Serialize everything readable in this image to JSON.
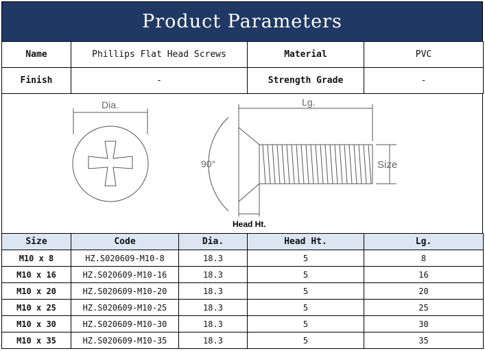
{
  "title": "Product Parameters",
  "info": {
    "name_label": "Name",
    "name_value": "Phillips Flat Head Screws",
    "material_label": "Material",
    "material_value": "PVC",
    "finish_label": "Finish",
    "finish_value": "-",
    "grade_label": "Strength Grade",
    "grade_value": "-"
  },
  "drawing": {
    "dia": "Dia.",
    "lg": "Lg.",
    "angle": "90°",
    "size": "Size",
    "head_ht": "Head Ht."
  },
  "table": {
    "headers": [
      "Size",
      "Code",
      "Dia.",
      "Head Ht.",
      "Lg."
    ],
    "rows": [
      [
        "M10 x 8",
        "HZ.S020609-M10-8",
        "18.3",
        "5",
        "8"
      ],
      [
        "M10 x 16",
        "HZ.S020609-M10-16",
        "18.3",
        "5",
        "16"
      ],
      [
        "M10 x 20",
        "HZ.S020609-M10-20",
        "18.3",
        "5",
        "20"
      ],
      [
        "M10 x 25",
        "HZ.S020609-M10-25",
        "18.3",
        "5",
        "25"
      ],
      [
        "M10 x 30",
        "HZ.S020609-M10-30",
        "18.3",
        "5",
        "30"
      ],
      [
        "M10 x 35",
        "HZ.S020609-M10-35",
        "18.3",
        "5",
        "35"
      ]
    ]
  },
  "colors": {
    "title_bg": "#1f3864",
    "header_bg": "#dce6f2"
  }
}
